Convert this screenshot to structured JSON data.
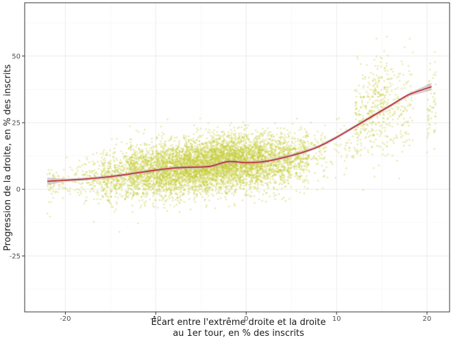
{
  "chart_data": {
    "type": "scatter",
    "title": "",
    "xlabel_lines": [
      "Écart entre l'extrême droite et la droite",
      "au 1er tour, en % des inscrits"
    ],
    "ylabel": "Progression de la droite, en % des inscrits",
    "xlim": [
      -24.5,
      22.5
    ],
    "ylim": [
      -46,
      70
    ],
    "x_ticks": [
      -20,
      -10,
      0,
      10,
      20
    ],
    "x_tick_labels": [
      "-20",
      "-10",
      "0",
      "10",
      "20"
    ],
    "y_ticks": [
      -25,
      0,
      25,
      50
    ],
    "y_tick_labels": [
      "-25",
      "0",
      "25",
      "50"
    ],
    "grid": true,
    "legend": "none",
    "colors": {
      "points": "#c8cc3c",
      "trend_line": "#c0393b",
      "confidence_band": "#b9a8b0",
      "panel_border": "#333333",
      "grid": "#ebebeb"
    },
    "series": [
      {
        "kind": "smoothed-trend",
        "x": [
          -22,
          -20,
          -18,
          -16,
          -14,
          -12,
          -10,
          -8,
          -6,
          -4,
          -2,
          0,
          2,
          4,
          6,
          8,
          10,
          12,
          14,
          16,
          18,
          20.5
        ],
        "y": [
          3,
          3.4,
          3.8,
          4.4,
          5.2,
          6.2,
          7.2,
          8,
          8.3,
          8.6,
          10.4,
          10,
          10.4,
          11.8,
          13.6,
          16,
          19.5,
          23.5,
          27.5,
          31.5,
          35.5,
          38.5
        ]
      }
    ],
    "point_clusters": [
      {
        "x_range": [
          -22,
          -21
        ],
        "y_mean": 2,
        "y_sd": 4,
        "n": 40
      },
      {
        "x_range": [
          -21,
          -19
        ],
        "y_mean": 3,
        "y_sd": 3,
        "n": 30
      },
      {
        "x_range": [
          -19,
          -16
        ],
        "y_mean": 4,
        "y_sd": 4,
        "n": 120
      },
      {
        "x_range": [
          -16,
          -13
        ],
        "y_mean": 5,
        "y_sd": 5,
        "n": 380
      },
      {
        "x_range": [
          -13,
          -10
        ],
        "y_mean": 6.5,
        "y_sd": 5,
        "n": 700
      },
      {
        "x_range": [
          -10,
          -7
        ],
        "y_mean": 7.5,
        "y_sd": 5,
        "n": 1000
      },
      {
        "x_range": [
          -7,
          -4
        ],
        "y_mean": 8.5,
        "y_sd": 5,
        "n": 1200
      },
      {
        "x_range": [
          -4,
          -1
        ],
        "y_mean": 10,
        "y_sd": 5,
        "n": 1300
      },
      {
        "x_range": [
          -1,
          2
        ],
        "y_mean": 10.5,
        "y_sd": 5,
        "n": 1000
      },
      {
        "x_range": [
          2,
          5
        ],
        "y_mean": 11,
        "y_sd": 5,
        "n": 600
      },
      {
        "x_range": [
          5,
          7
        ],
        "y_mean": 12.5,
        "y_sd": 5,
        "n": 250
      },
      {
        "x_range": [
          7,
          9
        ],
        "y_mean": 14,
        "y_sd": 5,
        "n": 70
      },
      {
        "x_range": [
          9,
          12
        ],
        "y_mean": 15,
        "y_sd": 5,
        "n": 40
      },
      {
        "x_range": [
          12,
          14
        ],
        "y_mean": 28,
        "y_sd": 8,
        "n": 170
      },
      {
        "x_range": [
          14,
          16
        ],
        "y_mean": 32,
        "y_sd": 9,
        "n": 200
      },
      {
        "x_range": [
          16,
          18.5
        ],
        "y_mean": 30,
        "y_sd": 9,
        "n": 120
      },
      {
        "x_range": [
          20,
          21
        ],
        "y_mean": 30,
        "y_sd": 10,
        "n": 60
      }
    ]
  }
}
